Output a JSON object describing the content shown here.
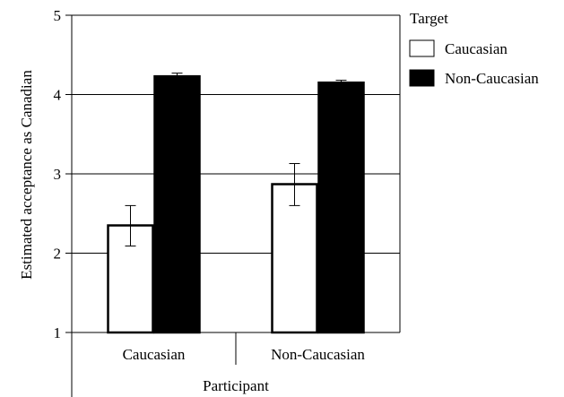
{
  "chart_data": {
    "type": "bar",
    "xlabel": "Participant",
    "ylabel": "Estimated acceptance as Canadian",
    "categories": [
      "Caucasian",
      "Non-Caucasian"
    ],
    "ylim": [
      1,
      5
    ],
    "yticks": [
      1,
      2,
      3,
      4,
      5
    ],
    "grid": "horizontal",
    "legend": {
      "title": "Target",
      "placement": "right"
    },
    "series": [
      {
        "name": "Caucasian",
        "color": "#ffffff",
        "values": [
          2.35,
          2.87
        ],
        "error": [
          [
            2.09,
            2.6
          ],
          [
            2.6,
            3.13
          ]
        ]
      },
      {
        "name": "Non-Caucasian",
        "color": "#000000",
        "values": [
          4.23,
          4.15
        ],
        "error": [
          [
            4.19,
            4.27
          ],
          [
            4.12,
            4.18
          ]
        ]
      }
    ]
  }
}
